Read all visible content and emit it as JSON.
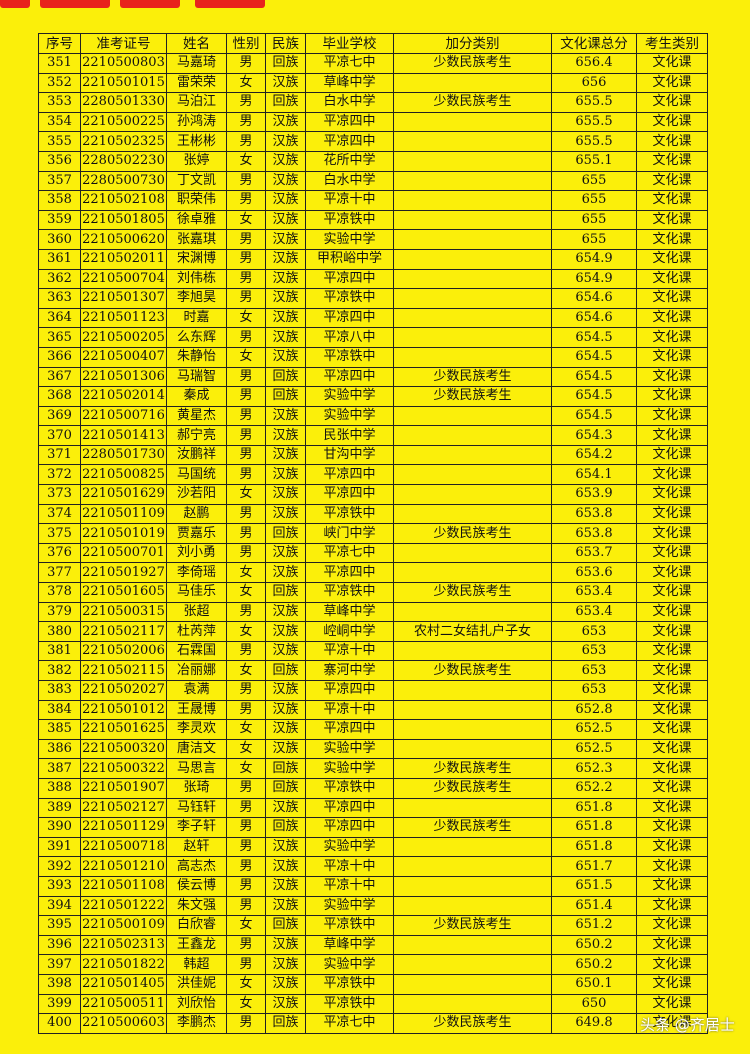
{
  "table": {
    "header": [
      "序号",
      "准考证号",
      "姓名",
      "性别",
      "民族",
      "毕业学校",
      "加分类别",
      "文化课总分",
      "考生类别"
    ],
    "rows": [
      {
        "no": "351",
        "id": "2210500803",
        "name": "马嘉琦",
        "sex": "男",
        "ethnic": "回族",
        "school": "平凉七中",
        "bonus": "少数民族考生",
        "score": "656.4",
        "type": "文化课"
      },
      {
        "no": "352",
        "id": "2210501015",
        "name": "雷荣荣",
        "sex": "女",
        "ethnic": "汉族",
        "school": "草峰中学",
        "score": "656",
        "type": "文化课"
      },
      {
        "no": "353",
        "id": "2280501330",
        "name": "马泊江",
        "sex": "男",
        "ethnic": "回族",
        "school": "白水中学",
        "bonus": "少数民族考生",
        "score": "655.5",
        "type": "文化课"
      },
      {
        "no": "354",
        "id": "2210500225",
        "name": "孙鸿涛",
        "sex": "男",
        "ethnic": "汉族",
        "school": "平凉四中",
        "score": "655.5",
        "type": "文化课"
      },
      {
        "no": "355",
        "id": "2210502325",
        "name": "王彬彬",
        "sex": "男",
        "ethnic": "汉族",
        "school": "平凉四中",
        "score": "655.5",
        "type": "文化课"
      },
      {
        "no": "356",
        "id": "2280502230",
        "name": "张婷",
        "sex": "女",
        "ethnic": "汉族",
        "school": "花所中学",
        "score": "655.1",
        "type": "文化课"
      },
      {
        "no": "357",
        "id": "2280500730",
        "name": "丁文凯",
        "sex": "男",
        "ethnic": "汉族",
        "school": "白水中学",
        "score": "655",
        "type": "文化课"
      },
      {
        "no": "358",
        "id": "2210502108",
        "name": "职荣伟",
        "sex": "男",
        "ethnic": "汉族",
        "school": "平凉十中",
        "score": "655",
        "type": "文化课"
      },
      {
        "no": "359",
        "id": "2210501805",
        "name": "徐卓雅",
        "sex": "女",
        "ethnic": "汉族",
        "school": "平凉铁中",
        "score": "655",
        "type": "文化课"
      },
      {
        "no": "360",
        "id": "2210500620",
        "name": "张嘉琪",
        "sex": "男",
        "ethnic": "汉族",
        "school": "实验中学",
        "score": "655",
        "type": "文化课"
      },
      {
        "no": "361",
        "id": "2210502011",
        "name": "宋渊博",
        "sex": "男",
        "ethnic": "汉族",
        "school": "甲积峪中学",
        "score": "654.9",
        "type": "文化课"
      },
      {
        "no": "362",
        "id": "2210500704",
        "name": "刘伟栋",
        "sex": "男",
        "ethnic": "汉族",
        "school": "平凉四中",
        "score": "654.9",
        "type": "文化课"
      },
      {
        "no": "363",
        "id": "2210501307",
        "name": "李旭昊",
        "sex": "男",
        "ethnic": "汉族",
        "school": "平凉铁中",
        "score": "654.6",
        "type": "文化课"
      },
      {
        "no": "364",
        "id": "2210501123",
        "name": "时嘉",
        "sex": "女",
        "ethnic": "汉族",
        "school": "平凉四中",
        "score": "654.6",
        "type": "文化课"
      },
      {
        "no": "365",
        "id": "2210500205",
        "name": "么东辉",
        "sex": "男",
        "ethnic": "汉族",
        "school": "平凉八中",
        "score": "654.5",
        "type": "文化课"
      },
      {
        "no": "366",
        "id": "2210500407",
        "name": "朱静怡",
        "sex": "女",
        "ethnic": "汉族",
        "school": "平凉铁中",
        "score": "654.5",
        "type": "文化课"
      },
      {
        "no": "367",
        "id": "2210501306",
        "name": "马瑞智",
        "sex": "男",
        "ethnic": "回族",
        "school": "平凉四中",
        "bonus": "少数民族考生",
        "score": "654.5",
        "type": "文化课"
      },
      {
        "no": "368",
        "id": "2210502014",
        "name": "秦成",
        "sex": "男",
        "ethnic": "回族",
        "school": "实验中学",
        "bonus": "少数民族考生",
        "score": "654.5",
        "type": "文化课"
      },
      {
        "no": "369",
        "id": "2210500716",
        "name": "黄星杰",
        "sex": "男",
        "ethnic": "汉族",
        "school": "实验中学",
        "score": "654.5",
        "type": "文化课"
      },
      {
        "no": "370",
        "id": "2210501413",
        "name": "郝宁亮",
        "sex": "男",
        "ethnic": "汉族",
        "school": "民张中学",
        "score": "654.3",
        "type": "文化课"
      },
      {
        "no": "371",
        "id": "2280501730",
        "name": "汝鹏祥",
        "sex": "男",
        "ethnic": "汉族",
        "school": "甘沟中学",
        "score": "654.2",
        "type": "文化课"
      },
      {
        "no": "372",
        "id": "2210500825",
        "name": "马国统",
        "sex": "男",
        "ethnic": "汉族",
        "school": "平凉四中",
        "score": "654.1",
        "type": "文化课"
      },
      {
        "no": "373",
        "id": "2210501629",
        "name": "沙若阳",
        "sex": "女",
        "ethnic": "汉族",
        "school": "平凉四中",
        "score": "653.9",
        "type": "文化课"
      },
      {
        "no": "374",
        "id": "2210501109",
        "name": "赵鹏",
        "sex": "男",
        "ethnic": "汉族",
        "school": "平凉铁中",
        "score": "653.8",
        "type": "文化课"
      },
      {
        "no": "375",
        "id": "2210501019",
        "name": "贾嘉乐",
        "sex": "男",
        "ethnic": "回族",
        "school": "峡门中学",
        "bonus": "少数民族考生",
        "score": "653.8",
        "type": "文化课"
      },
      {
        "no": "376",
        "id": "2210500701",
        "name": "刘小勇",
        "sex": "男",
        "ethnic": "汉族",
        "school": "平凉七中",
        "score": "653.7",
        "type": "文化课"
      },
      {
        "no": "377",
        "id": "2210501927",
        "name": "李倚瑶",
        "sex": "女",
        "ethnic": "汉族",
        "school": "平凉四中",
        "score": "653.6",
        "type": "文化课"
      },
      {
        "no": "378",
        "id": "2210501605",
        "name": "马佳乐",
        "sex": "女",
        "ethnic": "回族",
        "school": "平凉铁中",
        "bonus": "少数民族考生",
        "score": "653.4",
        "type": "文化课"
      },
      {
        "no": "379",
        "id": "2210500315",
        "name": "张超",
        "sex": "男",
        "ethnic": "汉族",
        "school": "草峰中学",
        "score": "653.4",
        "type": "文化课"
      },
      {
        "no": "380",
        "id": "2210502117",
        "name": "杜芮萍",
        "sex": "女",
        "ethnic": "汉族",
        "school": "崆峒中学",
        "bonus": "农村二女结扎户子女",
        "score": "653",
        "type": "文化课"
      },
      {
        "no": "381",
        "id": "2210502006",
        "name": "石霖国",
        "sex": "男",
        "ethnic": "汉族",
        "school": "平凉十中",
        "score": "653",
        "type": "文化课"
      },
      {
        "no": "382",
        "id": "2210502115",
        "name": "冶丽娜",
        "sex": "女",
        "ethnic": "回族",
        "school": "寨河中学",
        "bonus": "少数民族考生",
        "score": "653",
        "type": "文化课"
      },
      {
        "no": "383",
        "id": "2210502027",
        "name": "袁满",
        "sex": "男",
        "ethnic": "汉族",
        "school": "平凉四中",
        "score": "653",
        "type": "文化课"
      },
      {
        "no": "384",
        "id": "2210501012",
        "name": "王晟博",
        "sex": "男",
        "ethnic": "汉族",
        "school": "平凉十中",
        "score": "652.8",
        "type": "文化课"
      },
      {
        "no": "385",
        "id": "2210501625",
        "name": "李灵欢",
        "sex": "女",
        "ethnic": "汉族",
        "school": "平凉四中",
        "score": "652.5",
        "type": "文化课"
      },
      {
        "no": "386",
        "id": "2210500320",
        "name": "唐洁文",
        "sex": "女",
        "ethnic": "汉族",
        "school": "实验中学",
        "score": "652.5",
        "type": "文化课"
      },
      {
        "no": "387",
        "id": "2210500322",
        "name": "马思言",
        "sex": "女",
        "ethnic": "回族",
        "school": "实验中学",
        "bonus": "少数民族考生",
        "score": "652.3",
        "type": "文化课"
      },
      {
        "no": "388",
        "id": "2210501907",
        "name": "张琦",
        "sex": "男",
        "ethnic": "回族",
        "school": "平凉铁中",
        "bonus": "少数民族考生",
        "score": "652.2",
        "type": "文化课"
      },
      {
        "no": "389",
        "id": "2210502127",
        "name": "马钰轩",
        "sex": "男",
        "ethnic": "汉族",
        "school": "平凉四中",
        "score": "651.8",
        "type": "文化课"
      },
      {
        "no": "390",
        "id": "2210501129",
        "name": "李子轩",
        "sex": "男",
        "ethnic": "回族",
        "school": "平凉四中",
        "bonus": "少数民族考生",
        "score": "651.8",
        "type": "文化课"
      },
      {
        "no": "391",
        "id": "2210500718",
        "name": "赵轩",
        "sex": "男",
        "ethnic": "汉族",
        "school": "实验中学",
        "score": "651.8",
        "type": "文化课"
      },
      {
        "no": "392",
        "id": "2210501210",
        "name": "高志杰",
        "sex": "男",
        "ethnic": "汉族",
        "school": "平凉十中",
        "score": "651.7",
        "type": "文化课"
      },
      {
        "no": "393",
        "id": "2210501108",
        "name": "侯云博",
        "sex": "男",
        "ethnic": "汉族",
        "school": "平凉十中",
        "score": "651.5",
        "type": "文化课"
      },
      {
        "no": "394",
        "id": "2210501222",
        "name": "朱文强",
        "sex": "男",
        "ethnic": "汉族",
        "school": "实验中学",
        "score": "651.4",
        "type": "文化课"
      },
      {
        "no": "395",
        "id": "2210500109",
        "name": "白欣睿",
        "sex": "女",
        "ethnic": "回族",
        "school": "平凉铁中",
        "bonus": "少数民族考生",
        "score": "651.2",
        "type": "文化课"
      },
      {
        "no": "396",
        "id": "2210502313",
        "name": "王鑫龙",
        "sex": "男",
        "ethnic": "汉族",
        "school": "草峰中学",
        "score": "650.2",
        "type": "文化课"
      },
      {
        "no": "397",
        "id": "2210501822",
        "name": "韩超",
        "sex": "男",
        "ethnic": "汉族",
        "school": "实验中学",
        "score": "650.2",
        "type": "文化课"
      },
      {
        "no": "398",
        "id": "2210501405",
        "name": "洪佳妮",
        "sex": "女",
        "ethnic": "汉族",
        "school": "平凉铁中",
        "score": "650.1",
        "type": "文化课"
      },
      {
        "no": "399",
        "id": "2210500511",
        "name": "刘欣怡",
        "sex": "女",
        "ethnic": "汉族",
        "school": "平凉铁中",
        "score": "650",
        "type": "文化课"
      },
      {
        "no": "400",
        "id": "2210500603",
        "name": "李鹏杰",
        "sex": "男",
        "ethnic": "回族",
        "school": "平凉七中",
        "bonus": "少数民族考生",
        "score": "649.8",
        "type": "文化课"
      }
    ]
  },
  "watermark": "头条 @齐居士"
}
